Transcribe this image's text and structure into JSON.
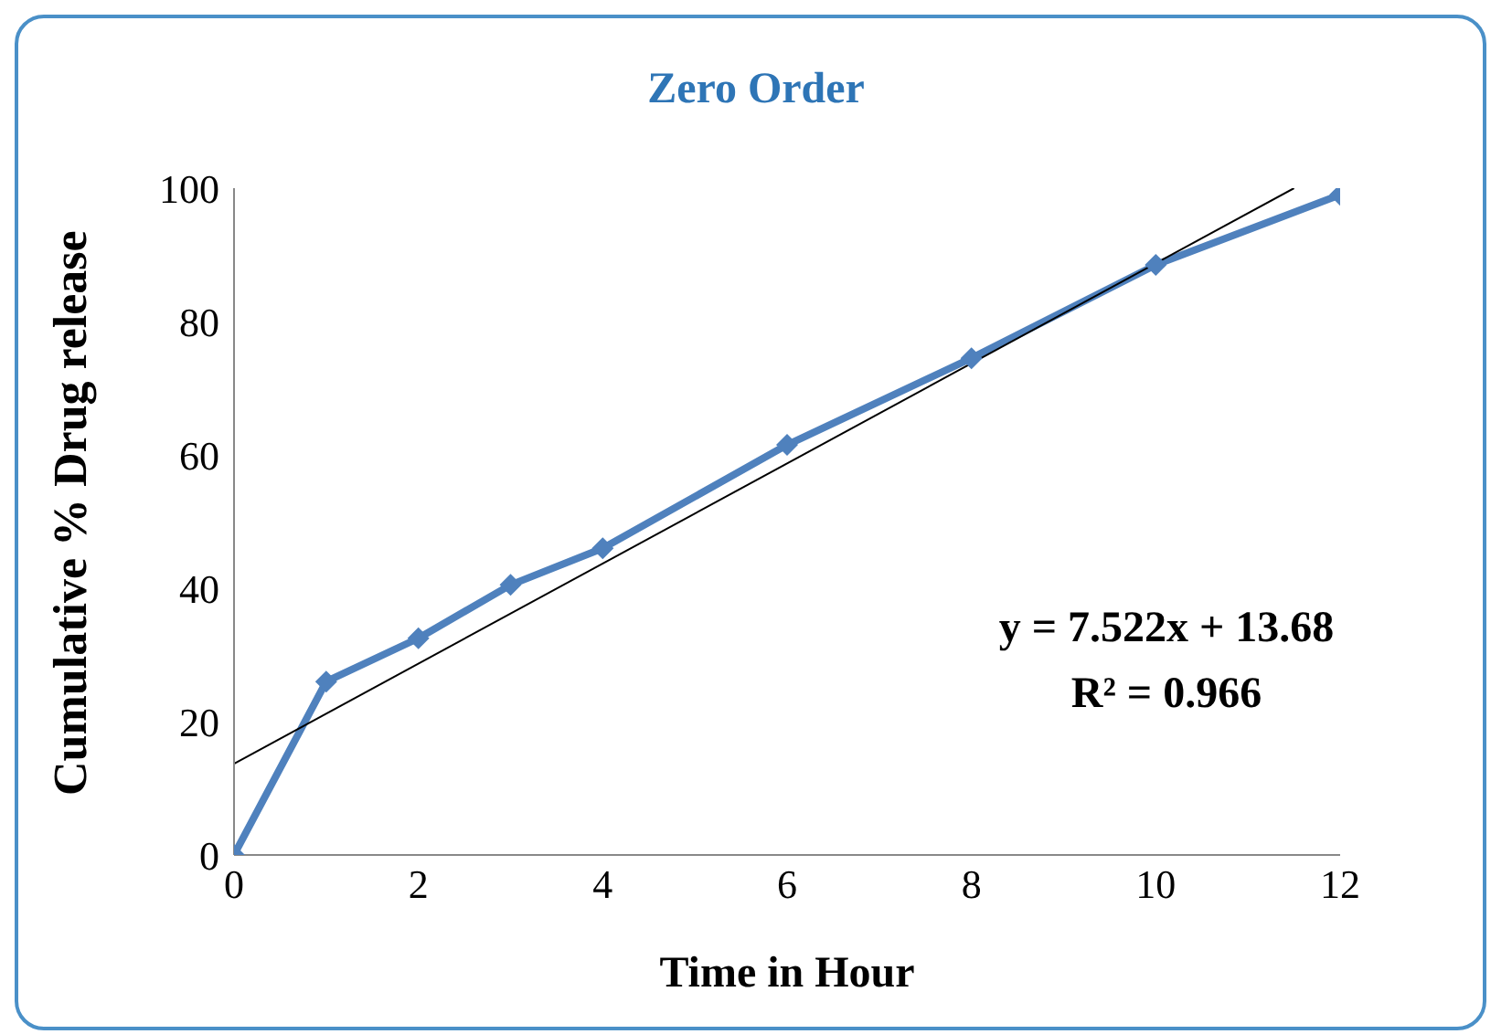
{
  "chart_data": {
    "type": "line",
    "title": "Zero Order",
    "xlabel": "Time in Hour",
    "ylabel": "Cumulative % Drug release",
    "annotations": [
      "y = 7.522x + 13.68",
      "R² = 0.966"
    ],
    "series": [
      {
        "color": "#4f81bd",
        "x": [
          0,
          1,
          2,
          3,
          4,
          6,
          8,
          10,
          12
        ],
        "values": [
          0,
          26,
          32.5,
          40.5,
          46,
          61.5,
          74.5,
          88.5,
          99
        ],
        "marker": "diamond"
      },
      {
        "color": "#000000",
        "x": [
          0,
          11.5
        ],
        "values": [
          13.68,
          100
        ],
        "marker": "none"
      }
    ],
    "xlim": [
      0,
      12
    ],
    "xticks": [
      0,
      2,
      4,
      6,
      8,
      10,
      12
    ],
    "ylim": [
      0,
      100
    ],
    "yticks": [
      0,
      20,
      40,
      60,
      80,
      100
    ],
    "grid": false,
    "legend": false
  }
}
